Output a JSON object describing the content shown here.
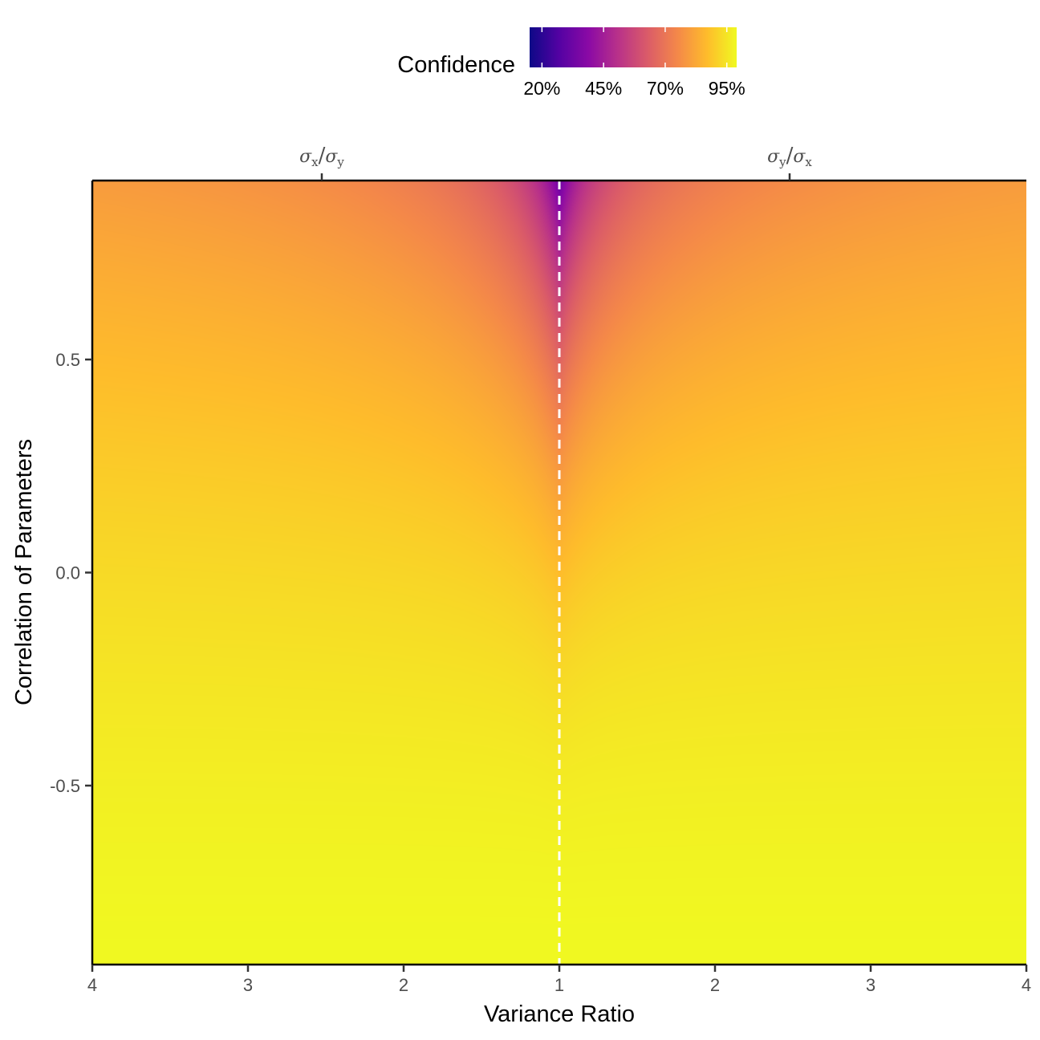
{
  "chart_data": {
    "type": "heatmap",
    "title": "",
    "xlabel": "Variance Ratio",
    "ylabel": "Correlation of Parameters",
    "x_ticks": [
      "4",
      "3",
      "2",
      "1",
      "2",
      "3",
      "4"
    ],
    "y_ticks": [
      "0.5",
      "0.0",
      "-0.5"
    ],
    "top_axis_labels": [
      {
        "sigma": "σ",
        "sub1": "x",
        "slash": "/",
        "sub2": "y"
      },
      {
        "sigma": "σ",
        "sub1": "y",
        "slash": "/",
        "sub2": "x"
      }
    ],
    "x_range_left": [
      4,
      1
    ],
    "x_range_right": [
      1,
      4
    ],
    "y_range": [
      -0.92,
      0.92
    ],
    "reference_line": {
      "x": 1,
      "style": "dashed",
      "color": "#ffffff"
    },
    "legend": {
      "title": "Confidence",
      "position": "top",
      "labels": [
        "20%",
        "45%",
        "70%",
        "95%"
      ],
      "values": [
        20,
        45,
        70,
        95
      ],
      "range": [
        15,
        99
      ]
    },
    "colormap": "plasma",
    "value_description": "confidence (%) as function of variance ratio r and correlation rho",
    "sample_values": [
      {
        "ratio": 1.0,
        "rho": 0.9,
        "confidence": 18
      },
      {
        "ratio": 1.0,
        "rho": 0.75,
        "confidence": 50
      },
      {
        "ratio": 1.0,
        "rho": 0.5,
        "confidence": 66
      },
      {
        "ratio": 1.0,
        "rho": 0.0,
        "confidence": 84
      },
      {
        "ratio": 1.0,
        "rho": -0.5,
        "confidence": 92
      },
      {
        "ratio": 1.0,
        "rho": -0.9,
        "confidence": 98
      },
      {
        "ratio": 4.0,
        "rho": 0.9,
        "confidence": 78
      },
      {
        "ratio": 4.0,
        "rho": 0.0,
        "confidence": 92
      },
      {
        "ratio": 4.0,
        "rho": -0.9,
        "confidence": 98
      }
    ]
  }
}
